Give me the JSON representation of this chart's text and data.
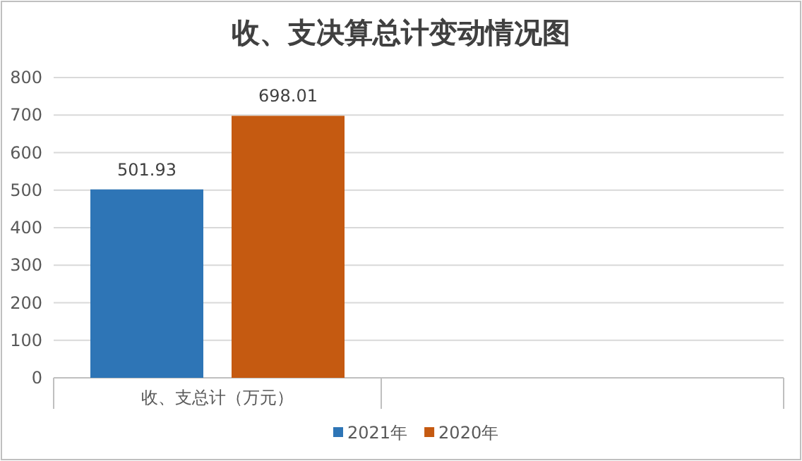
{
  "chart_data": {
    "type": "bar",
    "title": "收、支决算总计变动情况图",
    "categories": [
      "收、支总计（万元）",
      null
    ],
    "series": [
      {
        "name": "2021年",
        "color": "#2e75b6",
        "values": [
          501.93,
          null
        ]
      },
      {
        "name": "2020年",
        "color": "#c55a11",
        "values": [
          698.01,
          null
        ]
      }
    ],
    "ylim": [
      0,
      800
    ],
    "yticks": [
      0,
      100,
      200,
      300,
      400,
      500,
      600,
      700,
      800
    ],
    "grid": "y",
    "legend": "bottom",
    "data_labels": true
  }
}
